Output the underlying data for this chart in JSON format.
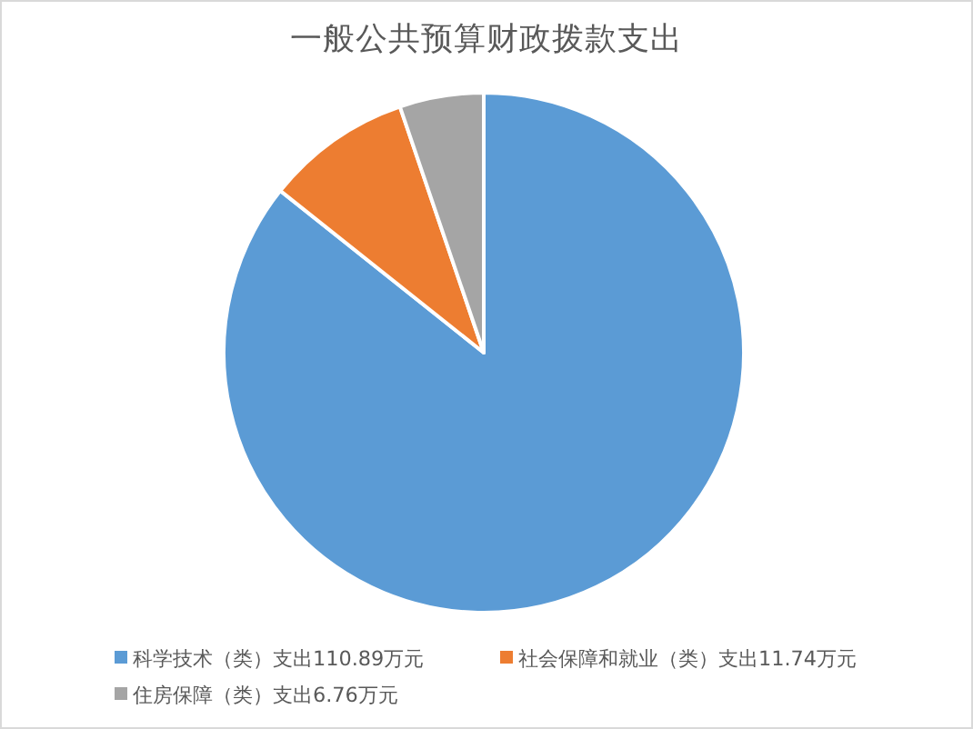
{
  "chart_data": {
    "type": "pie",
    "title": "一般公共预算财政拨款支出",
    "categories": [
      "科学技术（类）支出110.89万元",
      "社会保障和就业（类）支出11.74万元",
      "住房保障（类）支出6.76万元"
    ],
    "values": [
      110.89,
      11.74,
      6.76
    ],
    "colors": [
      "#5b9bd5",
      "#ed7d31",
      "#a5a5a5"
    ],
    "legend": "bottom"
  }
}
